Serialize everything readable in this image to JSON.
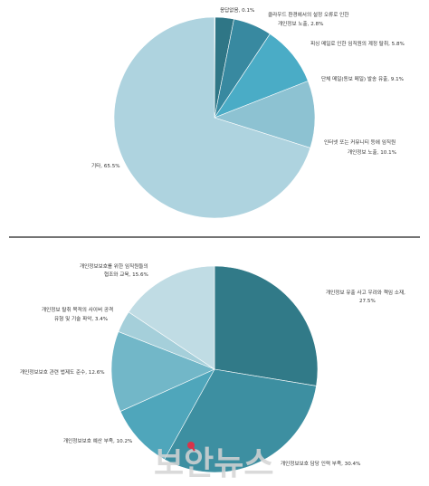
{
  "chart_data": [
    {
      "type": "pie",
      "slices": [
        {
          "label": "응답없음, 0.1%",
          "value": 0.1,
          "color": "#2e6f7e"
        },
        {
          "label": "클라우드 환경에서의 설정 오류로 인한 개인정보 노출, 2.8%",
          "value": 2.8,
          "color": "#2f7686"
        },
        {
          "label": "피싱 메일로 인한 임직원의 계정 탈취, 5.8%",
          "value": 5.8,
          "color": "#3889a0"
        },
        {
          "label": "단체 메일(동보 메일) 발송 유출, 9.1%",
          "value": 9.1,
          "color": "#4aacc6"
        },
        {
          "label": "인터넷 또는 커뮤니티 등에 임직원 개인정보 노출, 10.1%",
          "value": 10.1,
          "color": "#8dc2d2"
        },
        {
          "label": "기타, 65.5%",
          "value": 65.5,
          "color": "#aed3df"
        }
      ]
    },
    {
      "type": "pie",
      "slices": [
        {
          "label": "개인정보 유출 사고 우려와 책임 소재, 27.5%",
          "value": 27.5,
          "color": "#317a88"
        },
        {
          "label": "개인정보보호 담당 인력 부족, 30.4%",
          "value": 30.4,
          "color": "#3d8fa1"
        },
        {
          "label": "개인정보보호 예산 부족, 10.2%",
          "value": 10.2,
          "color": "#4fa6bb"
        },
        {
          "label": "개인정보보호 관련 법제도 준수, 12.6%",
          "value": 12.6,
          "color": "#72b7c8"
        },
        {
          "label": "개인정보 탈취 목적의 사이버 공격 유형 및 기술 파악, 3.4%",
          "value": 3.4,
          "color": "#a5cfda"
        },
        {
          "label": "개인정보보호를 위한 임직원들의 협조와 교육, 15.6%",
          "value": 15.6,
          "color": "#c0dce4"
        }
      ]
    }
  ],
  "watermark": "보안뉴스",
  "watermark_accent_color": "#d9344a"
}
